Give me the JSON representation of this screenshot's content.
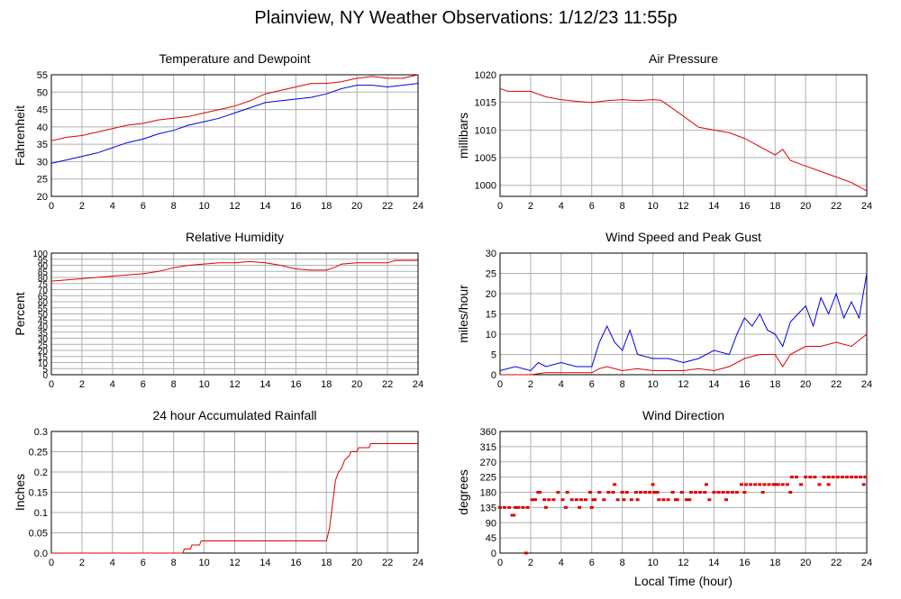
{
  "page_title": "Plainview, NY Weather Observations: 1/12/23 11:55p",
  "xlabel_bottom": "Local Time (hour)",
  "colors": {
    "primary": "#e00000",
    "secondary": "#0000e0",
    "grid": "#b0b0b0"
  },
  "chart_data": [
    {
      "id": "temperature-dewpoint",
      "type": "line",
      "title": "Temperature and Dewpoint",
      "xlabel": "",
      "ylabel": "Fahrenheit",
      "xlim": [
        0,
        24
      ],
      "ylim": [
        20,
        55
      ],
      "xticks": [
        0,
        2,
        4,
        6,
        8,
        10,
        12,
        14,
        16,
        18,
        20,
        22,
        24
      ],
      "yticks": [
        "20",
        "25",
        "30",
        "35",
        "40",
        "45",
        "50",
        "55"
      ],
      "grid": true,
      "series": [
        {
          "color": "#e00000",
          "x": [
            0,
            1,
            2,
            3,
            4,
            5,
            6,
            7,
            8,
            9,
            10,
            11,
            12,
            13,
            14,
            15,
            16,
            17,
            18,
            19,
            20,
            21,
            22,
            23,
            24
          ],
          "y": [
            36,
            37,
            37.5,
            38.5,
            39.5,
            40.5,
            41,
            42,
            42.5,
            43,
            44,
            45,
            46,
            47.5,
            49.5,
            50.5,
            51.5,
            52.5,
            52.5,
            53,
            54,
            54.5,
            54,
            54,
            55
          ]
        },
        {
          "color": "#0000e0",
          "x": [
            0,
            1,
            2,
            3,
            4,
            5,
            6,
            7,
            8,
            9,
            10,
            11,
            12,
            13,
            14,
            15,
            16,
            17,
            18,
            19,
            20,
            21,
            22,
            23,
            24
          ],
          "y": [
            29.5,
            30.5,
            31.5,
            32.5,
            34,
            35.5,
            36.5,
            38,
            39,
            40.5,
            41.5,
            42.5,
            44,
            45.5,
            47,
            47.5,
            48,
            48.5,
            49.5,
            51,
            52,
            52,
            51.5,
            52,
            52.5
          ]
        }
      ]
    },
    {
      "id": "air-pressure",
      "type": "line",
      "title": "Air Pressure",
      "xlabel": "",
      "ylabel": "millibars",
      "xlim": [
        0,
        24
      ],
      "ylim": [
        998,
        1020
      ],
      "xticks": [
        0,
        2,
        4,
        6,
        8,
        10,
        12,
        14,
        16,
        18,
        20,
        22,
        24
      ],
      "yticks": [
        "1000",
        "1005",
        "1010",
        "1015",
        "1020"
      ],
      "grid": true,
      "series": [
        {
          "color": "#e00000",
          "x": [
            0,
            0.5,
            1,
            2,
            3,
            4,
            5,
            6,
            7,
            8,
            9,
            10,
            10.5,
            11,
            12,
            13,
            14,
            15,
            16,
            17,
            18,
            18.5,
            19,
            20,
            21,
            22,
            23,
            24
          ],
          "y": [
            1017.5,
            1017,
            1017,
            1017,
            1016,
            1015.5,
            1015.2,
            1015,
            1015.3,
            1015.5,
            1015.3,
            1015.5,
            1015.4,
            1014.5,
            1012.5,
            1010.5,
            1010,
            1009.5,
            1008.5,
            1007,
            1005.5,
            1006.5,
            1004.5,
            1003.5,
            1002.5,
            1001.5,
            1000.5,
            999
          ]
        }
      ]
    },
    {
      "id": "relative-humidity",
      "type": "line",
      "title": "Relative Humidity",
      "xlabel": "",
      "ylabel": "Percent",
      "xlim": [
        0,
        24
      ],
      "ylim": [
        0,
        100
      ],
      "xticks": [
        0,
        2,
        4,
        6,
        8,
        10,
        12,
        14,
        16,
        18,
        20,
        22,
        24
      ],
      "yticks": [
        "0",
        "5",
        "10",
        "15",
        "20",
        "25",
        "30",
        "35",
        "40",
        "45",
        "50",
        "55",
        "60",
        "65",
        "70",
        "75",
        "80",
        "85",
        "90",
        "95",
        "100"
      ],
      "grid": true,
      "series": [
        {
          "color": "#e00000",
          "x": [
            0,
            1,
            2,
            3,
            4,
            5,
            6,
            7,
            8,
            9,
            10,
            11,
            12,
            13,
            14,
            15,
            16,
            17,
            18,
            18.5,
            19,
            20,
            21,
            22,
            22.5,
            23,
            24
          ],
          "y": [
            77,
            78,
            79,
            80,
            81,
            82,
            83,
            85,
            88,
            90,
            91,
            92,
            92,
            93,
            92,
            90,
            87,
            86,
            86,
            88,
            91,
            92,
            92,
            92,
            94,
            94,
            94
          ]
        }
      ]
    },
    {
      "id": "wind-speed-gust",
      "type": "line",
      "title": "Wind Speed and Peak Gust",
      "xlabel": "",
      "ylabel": "miles/hour",
      "xlim": [
        0,
        24
      ],
      "ylim": [
        0,
        30
      ],
      "xticks": [
        0,
        2,
        4,
        6,
        8,
        10,
        12,
        14,
        16,
        18,
        20,
        22,
        24
      ],
      "yticks": [
        "0",
        "5",
        "10",
        "15",
        "20",
        "25",
        "30"
      ],
      "grid": true,
      "series": [
        {
          "color": "#0000e0",
          "x": [
            0,
            1,
            2,
            2.5,
            3,
            4,
            5,
            6,
            6.5,
            7,
            7.5,
            8,
            8.5,
            9,
            10,
            11,
            12,
            13,
            14,
            15,
            15.5,
            16,
            16.5,
            17,
            17.5,
            18,
            18.5,
            19,
            19.5,
            20,
            20.5,
            21,
            21.5,
            22,
            22.5,
            23,
            23.5,
            24
          ],
          "y": [
            1,
            2,
            1,
            3,
            2,
            3,
            2,
            2,
            8,
            12,
            8,
            6,
            11,
            5,
            4,
            4,
            3,
            4,
            6,
            5,
            10,
            14,
            12,
            15,
            11,
            10,
            7,
            13,
            15,
            17,
            12,
            19,
            15,
            20,
            14,
            18,
            14,
            25
          ]
        },
        {
          "color": "#e00000",
          "x": [
            0,
            1,
            2,
            3,
            4,
            5,
            6,
            6.5,
            7,
            8,
            9,
            10,
            11,
            12,
            13,
            14,
            15,
            16,
            17,
            18,
            18.5,
            19,
            19.5,
            20,
            21,
            22,
            23,
            24
          ],
          "y": [
            0,
            0,
            0,
            0.5,
            0.5,
            0.5,
            0.5,
            1.5,
            2,
            1,
            1.5,
            1,
            1,
            1,
            1.5,
            1,
            2,
            4,
            5,
            5,
            2,
            5,
            6,
            7,
            7,
            8,
            7,
            10
          ]
        }
      ]
    },
    {
      "id": "accumulated-rainfall",
      "type": "line",
      "title": "24 hour Accumulated Rainfall",
      "xlabel": "",
      "ylabel": "Inches",
      "xlim": [
        0,
        24
      ],
      "ylim": [
        0,
        0.3
      ],
      "xticks": [
        0,
        2,
        4,
        6,
        8,
        10,
        12,
        14,
        16,
        18,
        20,
        22,
        24
      ],
      "yticks": [
        "0.0",
        "0.05",
        "0.1",
        "0.15",
        "0.2",
        "0.25",
        "0.3"
      ],
      "grid": true,
      "series": [
        {
          "color": "#e00000",
          "x": [
            0,
            8.6,
            8.7,
            9.1,
            9.2,
            9.7,
            9.8,
            18,
            18.2,
            18.4,
            18.6,
            18.8,
            19,
            19.2,
            19.5,
            19.6,
            20,
            20.1,
            20.8,
            20.9,
            24
          ],
          "y": [
            0,
            0,
            0.01,
            0.01,
            0.02,
            0.02,
            0.03,
            0.03,
            0.06,
            0.12,
            0.18,
            0.2,
            0.21,
            0.23,
            0.24,
            0.25,
            0.25,
            0.26,
            0.26,
            0.27,
            0.27
          ]
        }
      ]
    },
    {
      "id": "wind-direction",
      "type": "scatter",
      "title": "Wind Direction",
      "xlabel": "Local Time (hour)",
      "ylabel": "degrees",
      "xlim": [
        0,
        24
      ],
      "ylim": [
        0,
        360
      ],
      "xticks": [
        0,
        2,
        4,
        6,
        8,
        10,
        12,
        14,
        16,
        18,
        20,
        22,
        24
      ],
      "yticks": [
        "0",
        "45",
        "90",
        "135",
        "180",
        "225",
        "270",
        "315",
        "360"
      ],
      "grid": true,
      "series": [
        {
          "color": "#e00000",
          "x": [
            0,
            0.3,
            0.6,
            0.9,
            1.2,
            1.5,
            1.8,
            2.1,
            2.3,
            2.6,
            2.9,
            3.2,
            3.5,
            3.8,
            4.1,
            4.4,
            4.7,
            5.0,
            5.3,
            5.6,
            5.9,
            6.2,
            6.5,
            6.8,
            7.1,
            7.4,
            7.7,
            8.0,
            8.3,
            8.6,
            8.9,
            9.2,
            9.5,
            9.8,
            10.1,
            10.4,
            10.7,
            11.0,
            11.3,
            11.6,
            11.9,
            12.2,
            12.5,
            12.8,
            13.1,
            13.4,
            13.7,
            14.0,
            14.3,
            14.6,
            14.9,
            15.2,
            15.5,
            15.8,
            16.1,
            16.4,
            16.7,
            17.0,
            17.3,
            17.6,
            17.9,
            18.2,
            18.5,
            18.8,
            19.1,
            19.4,
            19.7,
            20.0,
            20.3,
            20.6,
            20.9,
            21.2,
            21.5,
            21.8,
            22.1,
            22.4,
            22.7,
            23.0,
            23.3,
            23.6,
            23.9,
            0.8,
            1.0,
            1.7,
            2.5,
            3.0,
            4.3,
            5.2,
            6.0,
            6.1,
            7.5,
            8.1,
            9.0,
            10.0,
            10.3,
            11.5,
            12.4,
            13.5,
            14.8,
            16.0,
            17.2,
            18.0,
            19.0,
            21.5,
            23.8
          ],
          "y": [
            135,
            135,
            135,
            112,
            135,
            135,
            135,
            158,
            158,
            180,
            158,
            158,
            158,
            180,
            158,
            180,
            158,
            158,
            158,
            158,
            180,
            158,
            180,
            158,
            180,
            180,
            158,
            180,
            180,
            158,
            180,
            180,
            180,
            180,
            180,
            158,
            158,
            158,
            180,
            158,
            180,
            158,
            180,
            180,
            180,
            180,
            158,
            180,
            180,
            180,
            180,
            180,
            180,
            203,
            203,
            203,
            203,
            203,
            203,
            203,
            203,
            203,
            203,
            203,
            225,
            225,
            203,
            225,
            225,
            225,
            203,
            225,
            225,
            225,
            225,
            225,
            225,
            225,
            225,
            225,
            225,
            112,
            135,
            0,
            180,
            135,
            135,
            135,
            135,
            158,
            203,
            158,
            158,
            203,
            180,
            158,
            158,
            203,
            158,
            180,
            180,
            203,
            180,
            203,
            203
          ]
        }
      ]
    }
  ]
}
